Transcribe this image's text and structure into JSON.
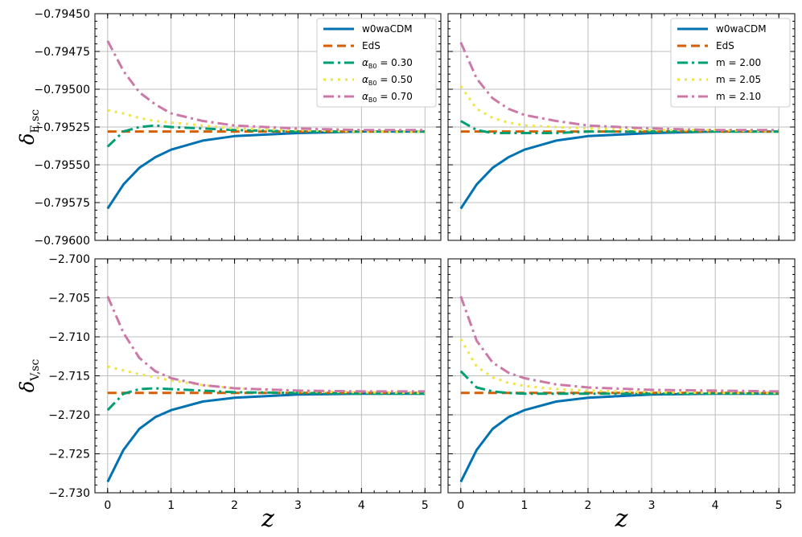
{
  "chart_data": [
    {
      "type": "line",
      "panel": "top-left",
      "ylabel": "δ_E,sc",
      "xlabel": "",
      "xlim": [
        -0.2,
        5.25
      ],
      "ylim": [
        -0.796,
        -0.7945
      ],
      "xticks": [
        "0",
        "1",
        "2",
        "3",
        "4",
        "5"
      ],
      "yticks": [
        "−0.79450",
        "−0.79475",
        "−0.79500",
        "−0.79525",
        "−0.79550",
        "−0.79575",
        "−0.79600"
      ],
      "yticks_values": [
        -0.7945,
        -0.79475,
        -0.795,
        -0.79525,
        -0.7955,
        -0.79575,
        -0.796
      ],
      "grid": true,
      "legend_position": "top-right",
      "series": [
        {
          "name": "w0waCDM",
          "style": "solid",
          "color": "#0072b2",
          "x": [
            0,
            0.25,
            0.5,
            0.75,
            1,
            1.5,
            2,
            3,
            4,
            5
          ],
          "values": [
            -0.79579,
            -0.79563,
            -0.79552,
            -0.79545,
            -0.7954,
            -0.79534,
            -0.79531,
            -0.79529,
            -0.79528,
            -0.79528
          ]
        },
        {
          "name": "EdS",
          "style": "dashed",
          "color": "#d55e00",
          "x": [
            0,
            1,
            2,
            3,
            4,
            5
          ],
          "values": [
            -0.79528,
            -0.79528,
            -0.79528,
            -0.79528,
            -0.79528,
            -0.79528
          ]
        },
        {
          "name": "αB0 = 0.30",
          "style": "dashdot",
          "color": "#009e73",
          "x": [
            0,
            0.25,
            0.5,
            0.75,
            1,
            1.5,
            2,
            3,
            4,
            5
          ],
          "values": [
            -0.79538,
            -0.79528,
            -0.79525,
            -0.79524,
            -0.79525,
            -0.79526,
            -0.79527,
            -0.79528,
            -0.79528,
            -0.79528
          ]
        },
        {
          "name": "αB0 = 0.50",
          "style": "dotted",
          "color": "#f0e442",
          "x": [
            0,
            0.25,
            0.5,
            0.75,
            1,
            1.5,
            2,
            3,
            4,
            5
          ],
          "values": [
            -0.79514,
            -0.79516,
            -0.79519,
            -0.79521,
            -0.79522,
            -0.79524,
            -0.79526,
            -0.79527,
            -0.79528,
            -0.79528
          ]
        },
        {
          "name": "αB0 = 0.70",
          "style": "dashdot",
          "color": "#cc79a7",
          "x": [
            0,
            0.25,
            0.5,
            0.75,
            1,
            1.5,
            2,
            3,
            4,
            5
          ],
          "values": [
            -0.79468,
            -0.79488,
            -0.79502,
            -0.7951,
            -0.79516,
            -0.79521,
            -0.79524,
            -0.79526,
            -0.79527,
            -0.79527
          ]
        }
      ],
      "legend_labels": [
        "w0waCDM",
        "EdS",
        "αB0 = 0.30",
        "αB0 = 0.50",
        "αB0 = 0.70"
      ]
    },
    {
      "type": "line",
      "panel": "top-right",
      "ylabel": "",
      "xlabel": "",
      "xlim": [
        -0.2,
        5.25
      ],
      "ylim": [
        -0.796,
        -0.7945
      ],
      "xticks": [
        "0",
        "1",
        "2",
        "3",
        "4",
        "5"
      ],
      "yticks": [],
      "yticks_values": [
        -0.7945,
        -0.79475,
        -0.795,
        -0.79525,
        -0.7955,
        -0.79575,
        -0.796
      ],
      "grid": true,
      "legend_position": "top-right",
      "series": [
        {
          "name": "w0waCDM",
          "style": "solid",
          "color": "#0072b2",
          "x": [
            0,
            0.25,
            0.5,
            0.75,
            1,
            1.5,
            2,
            3,
            4,
            5
          ],
          "values": [
            -0.79579,
            -0.79563,
            -0.79552,
            -0.79545,
            -0.7954,
            -0.79534,
            -0.79531,
            -0.79529,
            -0.79528,
            -0.79528
          ]
        },
        {
          "name": "EdS",
          "style": "dashed",
          "color": "#d55e00",
          "x": [
            0,
            1,
            2,
            3,
            4,
            5
          ],
          "values": [
            -0.79528,
            -0.79528,
            -0.79528,
            -0.79528,
            -0.79528,
            -0.79528
          ]
        },
        {
          "name": "m = 2.00",
          "style": "dashdot",
          "color": "#009e73",
          "x": [
            0,
            0.25,
            0.5,
            0.75,
            1,
            1.5,
            2,
            3,
            4,
            5
          ],
          "values": [
            -0.79521,
            -0.79527,
            -0.79529,
            -0.79529,
            -0.79529,
            -0.79529,
            -0.79528,
            -0.79528,
            -0.79528,
            -0.79528
          ]
        },
        {
          "name": "m = 2.05",
          "style": "dotted",
          "color": "#f0e442",
          "x": [
            0,
            0.25,
            0.5,
            0.75,
            1,
            1.5,
            2,
            3,
            4,
            5
          ],
          "values": [
            -0.79498,
            -0.79513,
            -0.79519,
            -0.79522,
            -0.79524,
            -0.79525,
            -0.79526,
            -0.79527,
            -0.79527,
            -0.79528
          ]
        },
        {
          "name": "m = 2.10",
          "style": "dashdot",
          "color": "#cc79a7",
          "x": [
            0,
            0.25,
            0.5,
            0.75,
            1,
            1.5,
            2,
            3,
            4,
            5
          ],
          "values": [
            -0.79469,
            -0.79493,
            -0.79506,
            -0.79513,
            -0.79517,
            -0.79521,
            -0.79524,
            -0.79526,
            -0.79527,
            -0.79527
          ]
        }
      ],
      "legend_labels": [
        "w0waCDM",
        "EdS",
        "m = 2.00",
        "m = 2.05",
        "m = 2.10"
      ]
    },
    {
      "type": "line",
      "panel": "bottom-left",
      "ylabel": "δ_V,sc",
      "xlabel": "z",
      "xlim": [
        -0.2,
        5.25
      ],
      "ylim": [
        -2.73,
        -2.7
      ],
      "xticks": [
        "0",
        "1",
        "2",
        "3",
        "4",
        "5"
      ],
      "yticks": [
        "−2.700",
        "−2.705",
        "−2.710",
        "−2.715",
        "−2.720",
        "−2.725",
        "−2.730"
      ],
      "yticks_values": [
        -2.7,
        -2.705,
        -2.71,
        -2.715,
        -2.72,
        -2.725,
        -2.73
      ],
      "grid": true,
      "legend_position": "none",
      "series": [
        {
          "name": "w0waCDM",
          "style": "solid",
          "color": "#0072b2",
          "x": [
            0,
            0.25,
            0.5,
            0.75,
            1,
            1.5,
            2,
            3,
            4,
            5
          ],
          "values": [
            -2.7286,
            -2.7245,
            -2.7218,
            -2.7203,
            -2.7194,
            -2.7183,
            -2.7178,
            -2.7174,
            -2.7173,
            -2.7173
          ]
        },
        {
          "name": "EdS",
          "style": "dashed",
          "color": "#d55e00",
          "x": [
            0,
            1,
            2,
            3,
            4,
            5
          ],
          "values": [
            -2.7172,
            -2.7172,
            -2.7172,
            -2.7172,
            -2.7172,
            -2.7172
          ]
        },
        {
          "name": "αB0 = 0.30",
          "style": "dashdot",
          "color": "#009e73",
          "x": [
            0,
            0.25,
            0.5,
            0.75,
            1,
            1.5,
            2,
            3,
            4,
            5
          ],
          "values": [
            -2.7194,
            -2.7173,
            -2.7167,
            -2.7166,
            -2.7167,
            -2.7169,
            -2.7171,
            -2.7172,
            -2.7173,
            -2.7173
          ]
        },
        {
          "name": "αB0 = 0.50",
          "style": "dotted",
          "color": "#f0e442",
          "x": [
            0,
            0.25,
            0.5,
            0.75,
            1,
            1.5,
            2,
            3,
            4,
            5
          ],
          "values": [
            -2.7138,
            -2.7143,
            -2.7148,
            -2.7152,
            -2.7156,
            -2.7162,
            -2.7166,
            -2.717,
            -2.7171,
            -2.7172
          ]
        },
        {
          "name": "αB0 = 0.70",
          "style": "dashdot",
          "color": "#cc79a7",
          "x": [
            0,
            0.25,
            0.5,
            0.75,
            1,
            1.5,
            2,
            3,
            4,
            5
          ],
          "values": [
            -2.7048,
            -2.7095,
            -2.7127,
            -2.7144,
            -2.7153,
            -2.7162,
            -2.7166,
            -2.7169,
            -2.717,
            -2.717
          ]
        }
      ]
    },
    {
      "type": "line",
      "panel": "bottom-right",
      "ylabel": "",
      "xlabel": "z",
      "xlim": [
        -0.2,
        5.25
      ],
      "ylim": [
        -2.73,
        -2.7
      ],
      "xticks": [
        "0",
        "1",
        "2",
        "3",
        "4",
        "5"
      ],
      "yticks": [],
      "yticks_values": [
        -2.7,
        -2.705,
        -2.71,
        -2.715,
        -2.72,
        -2.725,
        -2.73
      ],
      "grid": true,
      "legend_position": "none",
      "series": [
        {
          "name": "w0waCDM",
          "style": "solid",
          "color": "#0072b2",
          "x": [
            0,
            0.25,
            0.5,
            0.75,
            1,
            1.5,
            2,
            3,
            4,
            5
          ],
          "values": [
            -2.7286,
            -2.7245,
            -2.7218,
            -2.7203,
            -2.7194,
            -2.7183,
            -2.7178,
            -2.7174,
            -2.7173,
            -2.7173
          ]
        },
        {
          "name": "EdS",
          "style": "dashed",
          "color": "#d55e00",
          "x": [
            0,
            1,
            2,
            3,
            4,
            5
          ],
          "values": [
            -2.7172,
            -2.7172,
            -2.7172,
            -2.7172,
            -2.7172,
            -2.7172
          ]
        },
        {
          "name": "m = 2.00",
          "style": "dashdot",
          "color": "#009e73",
          "x": [
            0,
            0.25,
            0.5,
            0.75,
            1,
            1.5,
            2,
            3,
            4,
            5
          ],
          "values": [
            -2.7144,
            -2.7165,
            -2.717,
            -2.7172,
            -2.7173,
            -2.7173,
            -2.7173,
            -2.7173,
            -2.7173,
            -2.7173
          ]
        },
        {
          "name": "m = 2.05",
          "style": "dotted",
          "color": "#f0e442",
          "x": [
            0,
            0.25,
            0.5,
            0.75,
            1,
            1.5,
            2,
            3,
            4,
            5
          ],
          "values": [
            -2.7103,
            -2.7138,
            -2.7152,
            -2.7159,
            -2.7163,
            -2.7167,
            -2.7169,
            -2.7171,
            -2.7172,
            -2.7172
          ]
        },
        {
          "name": "m = 2.10",
          "style": "dashdot",
          "color": "#cc79a7",
          "x": [
            0,
            0.25,
            0.5,
            0.75,
            1,
            1.5,
            2,
            3,
            4,
            5
          ],
          "values": [
            -2.7048,
            -2.7105,
            -2.7133,
            -2.7146,
            -2.7153,
            -2.7161,
            -2.7165,
            -2.7168,
            -2.7169,
            -2.717
          ]
        }
      ]
    }
  ]
}
